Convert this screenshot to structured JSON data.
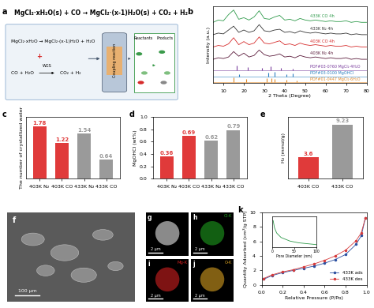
{
  "chart_data": [
    {
      "type": "line",
      "xlabel": "2 Theta (Degree)",
      "ylabel": "Intensity (a.u.)",
      "xlim": [
        5,
        80
      ],
      "xticks": [
        10,
        20,
        30,
        40,
        50,
        60,
        70,
        80
      ],
      "ylim": [
        0,
        10
      ],
      "tick_labels": "x",
      "x": [
        5,
        7.5,
        10,
        12.5,
        15,
        17.5,
        20,
        22.5,
        25,
        27.5,
        30,
        32.5,
        35,
        37.5,
        40,
        42.5,
        45,
        47.5,
        50,
        52.5,
        55,
        57.5,
        60,
        62.5,
        65,
        67.5,
        70,
        72.5,
        75,
        77.5,
        80
      ],
      "series": [
        {
          "name": "433K CO 4h",
          "color": "#2e9a4a",
          "values": [
            7.9,
            8.2,
            8.1,
            8.9,
            9.5,
            8.3,
            8.5,
            8.2,
            8.6,
            9.4,
            8.4,
            8.3,
            8.6,
            8.8,
            8.2,
            8.3,
            8.1,
            8.4,
            8.2,
            8.1,
            8.2,
            8.1,
            8.0,
            8.1,
            8.0,
            8.0,
            8.1,
            7.9,
            8.0,
            7.9,
            7.9
          ]
        },
        {
          "name": "433K N₂ 4h",
          "color": "#333333",
          "values": [
            6.3,
            6.5,
            6.4,
            6.9,
            7.4,
            6.6,
            6.9,
            6.6,
            6.8,
            7.6,
            6.8,
            6.7,
            6.9,
            7.0,
            6.6,
            6.7,
            6.5,
            6.8,
            6.6,
            6.5,
            6.6,
            6.5,
            6.4,
            6.5,
            6.4,
            6.4,
            6.5,
            6.3,
            6.4,
            6.3,
            6.3
          ]
        },
        {
          "name": "403K CO 4h",
          "color": "#d62b2b",
          "values": [
            4.7,
            4.9,
            4.8,
            5.1,
            5.9,
            5.0,
            5.4,
            5.0,
            5.2,
            6.0,
            5.2,
            5.1,
            5.3,
            5.5,
            5.0,
            5.1,
            4.9,
            5.2,
            5.0,
            4.9,
            5.0,
            4.9,
            4.8,
            4.9,
            4.8,
            4.8,
            4.9,
            4.7,
            4.8,
            4.7,
            4.7
          ]
        },
        {
          "name": "403K N₂ 4h",
          "color": "#5a1a3a",
          "values": [
            3.1,
            3.3,
            3.2,
            3.4,
            4.1,
            3.5,
            3.9,
            3.4,
            3.6,
            4.3,
            3.7,
            3.5,
            3.6,
            3.8,
            3.4,
            3.5,
            3.3,
            3.6,
            3.4,
            3.3,
            3.4,
            3.3,
            3.2,
            3.3,
            3.2,
            3.2,
            3.3,
            3.1,
            3.2,
            3.1,
            3.1
          ]
        }
      ],
      "references": [
        {
          "name": "PDF#03-0760 MgCl₂·4H₂O",
          "color": "#7b3f9e",
          "baseline": 1.7,
          "x": [
            16.5,
            22,
            29,
            33,
            38,
            44
          ],
          "values": [
            0.6,
            0.4,
            0.3,
            0.5,
            0.3,
            0.2
          ]
        },
        {
          "name": "PDF#03-0100 MgOHCl",
          "color": "#2a7fbf",
          "baseline": 0.9,
          "x": [
            17.5,
            32,
            35,
            41,
            44
          ],
          "values": [
            0.3,
            0.5,
            0.6,
            0.3,
            0.4
          ]
        },
        {
          "name": "PDF#01-0447 MgCl₂·6H₂O",
          "color": "#e08a2a",
          "baseline": 0.1,
          "x": [
            15,
            21,
            31,
            33.5,
            35,
            41,
            46
          ],
          "values": [
            0.6,
            0.4,
            0.5,
            0.5,
            0.4,
            0.3,
            0.2
          ]
        }
      ]
    },
    {
      "type": "bar",
      "ylabel": "The number of crystallized water",
      "categories": [
        "403K N₂",
        "403K CO",
        "433K N₂",
        "433K CO"
      ],
      "values": [
        1.78,
        1.22,
        1.54,
        0.64
      ],
      "colors": [
        "#e03a3a",
        "#e03a3a",
        "#9a9a9a",
        "#9a9a9a"
      ],
      "ylim": [
        0,
        2.1
      ],
      "tick_labels": "x",
      "data_labels": true
    },
    {
      "type": "bar",
      "ylabel": "MgOHCl (wt%)",
      "categories": [
        "403K N₂",
        "403K CO",
        "433K N₂",
        "433K CO"
      ],
      "values": [
        0.36,
        0.69,
        0.62,
        0.79
      ],
      "colors": [
        "#e03a3a",
        "#e03a3a",
        "#9a9a9a",
        "#9a9a9a"
      ],
      "ylim": [
        0,
        1.0
      ],
      "yticks": [
        0.0,
        0.2,
        0.4,
        0.6,
        0.8,
        1.0
      ],
      "data_labels": true
    },
    {
      "type": "bar",
      "ylabel": "H₂ (mmol/g)",
      "categories": [
        "403K CO",
        "433K CO"
      ],
      "values": [
        3.6,
        9.23
      ],
      "colors": [
        "#e03a3a",
        "#9a9a9a"
      ],
      "ylim": [
        0,
        10.5
      ],
      "tick_labels": "x",
      "data_labels": true
    },
    {
      "type": "line",
      "xlabel": "Relative Pressure (P/Po)",
      "ylabel": "Quantity Adsorbed (cm³/g STP)",
      "xlim": [
        0,
        1.0
      ],
      "xticks": [
        0.0,
        0.2,
        0.4,
        0.6,
        0.8,
        1.0
      ],
      "ylim": [
        0,
        10
      ],
      "yticks": [
        0,
        2,
        4,
        6,
        8,
        10
      ],
      "legend": "lower right",
      "x": [
        0.02,
        0.1,
        0.2,
        0.3,
        0.4,
        0.5,
        0.6,
        0.7,
        0.8,
        0.9,
        0.95,
        0.99
      ],
      "series": [
        {
          "name": "433K ads",
          "color": "#2b4fa0",
          "marker": "o",
          "values": [
            0.8,
            1.3,
            1.7,
            2.0,
            2.3,
            2.6,
            3.0,
            3.5,
            4.2,
            5.6,
            6.8,
            9.3
          ]
        },
        {
          "name": "433K des",
          "color": "#d63b3b",
          "marker": "o",
          "values": [
            0.9,
            1.4,
            1.8,
            2.1,
            2.5,
            2.9,
            3.4,
            4.0,
            4.8,
            6.1,
            7.2,
            9.3
          ]
        }
      ]
    },
    {
      "type": "line",
      "xlabel": "Pore Diameter (nm)",
      "xlim": [
        0,
        100
      ],
      "xticks": [
        0,
        50,
        100
      ],
      "ylim": [
        0,
        0.035
      ],
      "tick_labels": "x",
      "x": [
        2,
        5,
        10,
        20,
        40,
        60,
        80,
        100
      ],
      "series": [
        {
          "color": "#2e9a4a",
          "values": [
            0.03,
            0.022,
            0.016,
            0.011,
            0.007,
            0.005,
            0.004,
            0.003
          ]
        }
      ]
    }
  ],
  "figure": {
    "panel_labels": [
      "a",
      "b",
      "c",
      "d",
      "e",
      "k"
    ],
    "scheme": {
      "equation": "MgCl₂·xH₂O(s) + CO → MgCl₂·(x-1)H₂O(s) + CO₂ + H₂",
      "reaction_1": "MgCl₂·xH₂O → MgCl₂·(x-1)H₂O + H₂O",
      "plus": "+",
      "reaction_2_left": "CO + H₂O",
      "reaction_2_right": "CO₂ + H₂",
      "catalysis": "WGS",
      "reactor": "Coupling reaction",
      "reactants": "Reactants",
      "products": "Products"
    },
    "images": [
      {
        "label": "f",
        "scale_bar": "100 μm"
      },
      {
        "label": "g",
        "scale_bar": "2 μm"
      },
      {
        "label": "h",
        "title": "Cl-K",
        "color": "#1fa01f",
        "scale_bar": "2 μm"
      },
      {
        "label": "i",
        "title": "Mg-K",
        "color": "#d42020",
        "scale_bar": "2 μm"
      },
      {
        "label": "j",
        "title": "O-K",
        "color": "#d8a020",
        "scale_bar": "2 μm"
      }
    ]
  }
}
